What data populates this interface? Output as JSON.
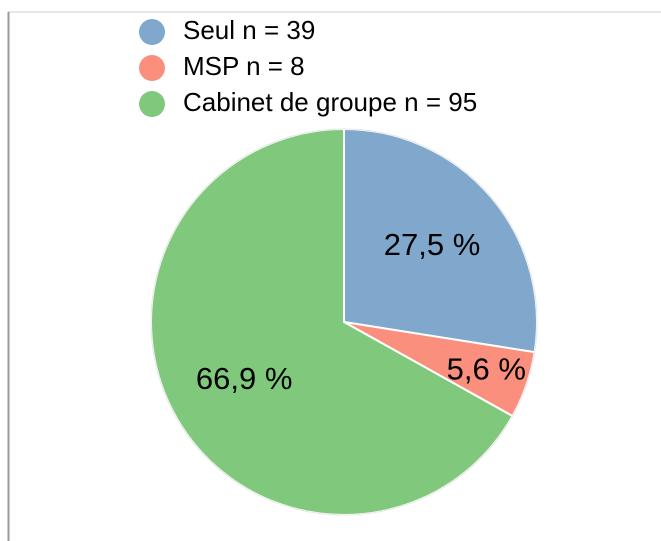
{
  "chart_data": {
    "type": "pie",
    "categories": [
      "Seul n = 39",
      "MSP n = 8",
      "Cabinet de groupe n = 95"
    ],
    "values": [
      27.5,
      5.6,
      66.9
    ],
    "value_labels": [
      "27,5 %",
      "5,6 %",
      "66,9 %"
    ],
    "colors": [
      "#80a8cc",
      "#fb8f7e",
      "#80c97c"
    ],
    "legend": "top"
  }
}
